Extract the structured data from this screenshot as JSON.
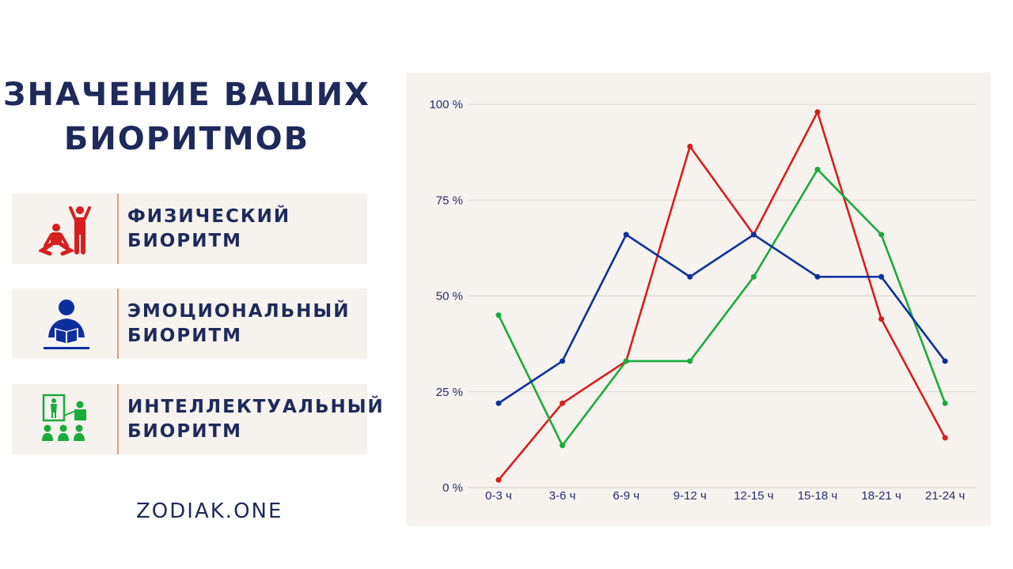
{
  "title_line1": "ЗНАЧЕНИЕ ВАШИХ",
  "title_line2": "БИОРИТМОВ",
  "legend": [
    {
      "line1": "ФИЗИЧЕСКИЙ",
      "line2": "БИОРИТМ",
      "icon": "physical-exercise-icon",
      "color": "#d81e1e"
    },
    {
      "line1": "ЭМОЦИОНАЛЬНЫЙ",
      "line2": "БИОРИТМ",
      "icon": "reader-icon",
      "color": "#0d2f9e"
    },
    {
      "line1": "ИНТЕЛЛЕКТУАЛЬНЫЙ",
      "line2": "БИОРИТМ",
      "icon": "classroom-icon",
      "color": "#1aab3a"
    }
  ],
  "footer": "ZODIAK.ONE",
  "chart_data": {
    "type": "line",
    "categories": [
      "0-3 ч",
      "3-6 ч",
      "6-9 ч",
      "9-12 ч",
      "12-15 ч",
      "15-18 ч",
      "18-21 ч",
      "21-24 ч"
    ],
    "yticks": [
      "0 %",
      "25 %",
      "50 %",
      "75 %",
      "100 %"
    ],
    "ylim": [
      0,
      100
    ],
    "grid": true,
    "series": [
      {
        "color": "#d81e1e",
        "values": [
          2,
          22,
          33,
          89,
          66,
          98,
          44,
          13
        ]
      },
      {
        "color": "#1aab3a",
        "values": [
          45,
          11,
          33,
          33,
          55,
          83,
          66,
          22
        ]
      },
      {
        "color": "#0d2f9e",
        "values": [
          22,
          33,
          66,
          55,
          66,
          55,
          55,
          33
        ]
      }
    ]
  }
}
